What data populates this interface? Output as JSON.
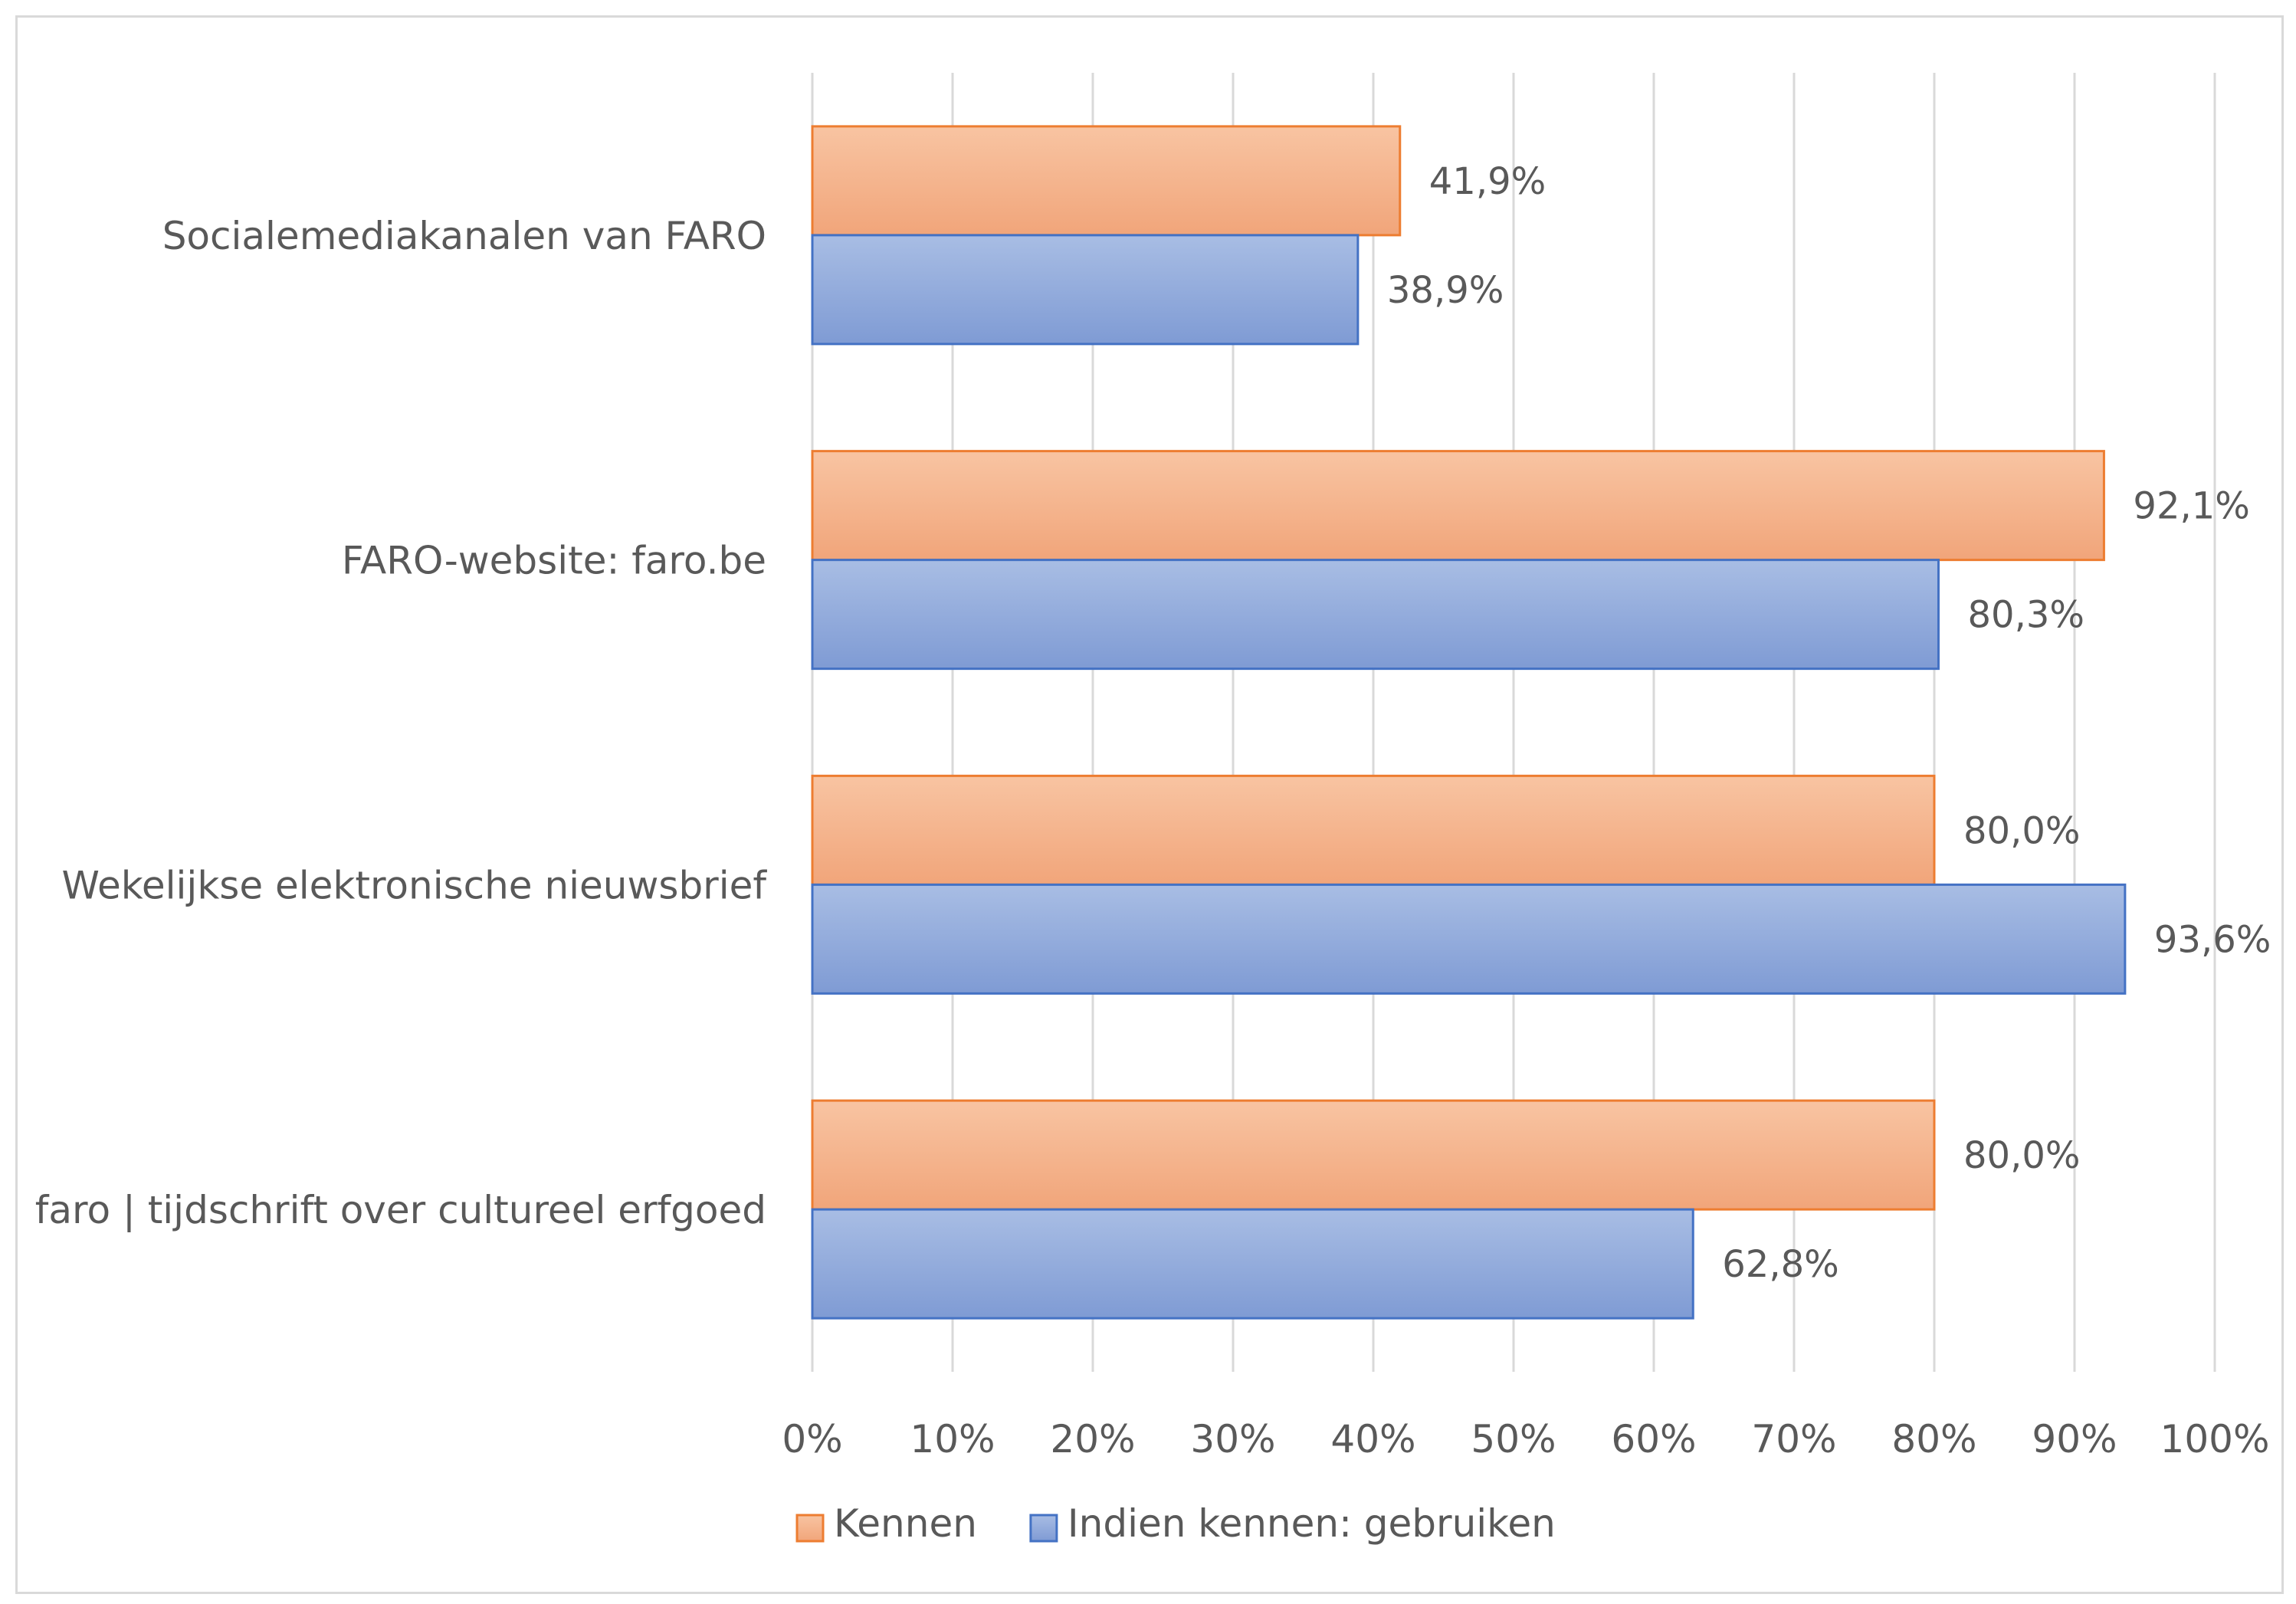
{
  "chart_data": {
    "type": "bar",
    "orientation": "horizontal",
    "categories": [
      "Socialemediakanalen van FARO",
      "FARO-website: faro.be",
      "Wekelijkse elektronische nieuwsbrief",
      "faro | tijdschrift over cultureel erfgoed"
    ],
    "series": [
      {
        "name": "Kennen",
        "values": [
          41.9,
          92.1,
          80.0,
          80.0
        ],
        "labels": [
          "41,9%",
          "92,1%",
          "80,0%",
          "80,0%"
        ],
        "color": "#f4b183",
        "border_color": "#ed7d31"
      },
      {
        "name": "Indien kennen: gebruiken",
        "values": [
          38.9,
          80.3,
          93.6,
          62.8
        ],
        "labels": [
          "38,9%",
          "80,3%",
          "93,6%",
          "62,8%"
        ],
        "color": "#8ea9db",
        "border_color": "#4472c4"
      }
    ],
    "xlim": [
      0,
      100
    ],
    "xticks": [
      0,
      10,
      20,
      30,
      40,
      50,
      60,
      70,
      80,
      90,
      100
    ],
    "xtick_labels": [
      "0%",
      "10%",
      "20%",
      "30%",
      "40%",
      "50%",
      "60%",
      "70%",
      "80%",
      "90%",
      "100%"
    ],
    "grid": true,
    "grid_color": "#d9d9d9",
    "legend_position": "bottom",
    "title": "",
    "xlabel": "",
    "ylabel": ""
  }
}
